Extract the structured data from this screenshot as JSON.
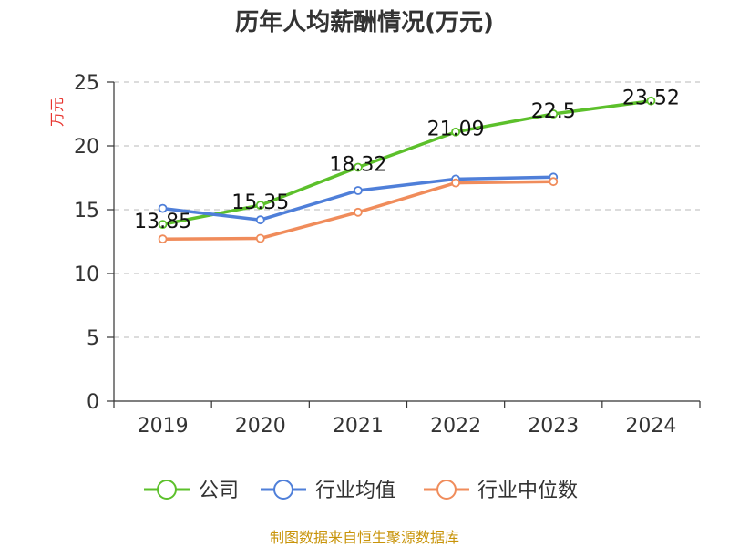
{
  "chart_data": {
    "type": "line",
    "title": "历年人均薪酬情况(万元)",
    "ylabel": "万元",
    "xlabel": "",
    "categories": [
      "2019",
      "2020",
      "2021",
      "2022",
      "2023",
      "2024"
    ],
    "ylim": [
      0,
      25
    ],
    "yticks": [
      "0",
      "5",
      "10",
      "15",
      "20",
      "25"
    ],
    "grid": true,
    "legend_position": "bottom",
    "series": [
      {
        "name": "公司",
        "color": "#5cc02b",
        "values": [
          13.85,
          15.35,
          18.32,
          21.09,
          22.5,
          23.52
        ],
        "labels": [
          "13.85",
          "15.35",
          "18.32",
          "21.09",
          "22.5",
          "23.52"
        ]
      },
      {
        "name": "行业均值",
        "color": "#4f7fd9",
        "values": [
          15.1,
          14.2,
          16.5,
          17.4,
          17.55,
          null
        ]
      },
      {
        "name": "行业中位数",
        "color": "#f08c5b",
        "values": [
          12.7,
          12.75,
          14.8,
          17.1,
          17.2,
          null
        ]
      }
    ]
  },
  "footer": "制图数据来自恒生聚源数据库"
}
